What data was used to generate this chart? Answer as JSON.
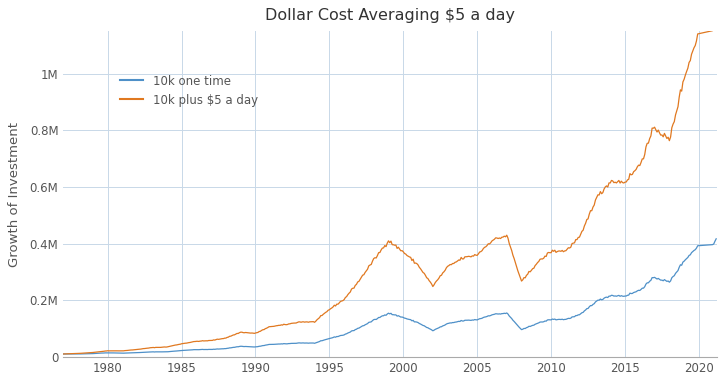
{
  "title": "Dollar Cost Averaging $5 a day",
  "ylabel": "Growth of Investment",
  "line1_label": "10k one time",
  "line2_label": "10k plus $5 a day",
  "line1_color": "#4e90c8",
  "line2_color": "#e07820",
  "background_color": "#ffffff",
  "grid_color": "#c8d8e8",
  "ytick_labels": [
    "0",
    "0.2M",
    "0.4M",
    "0.6M",
    "0.8M",
    "1M"
  ],
  "ytick_values": [
    0,
    200000,
    400000,
    600000,
    800000,
    1000000
  ],
  "xlim_start": 1977.0,
  "xlim_end": 2021.2,
  "ylim_top": 1150000,
  "start_year": 1977,
  "initial_investment": 10000,
  "daily_addition": 5,
  "xticks": [
    1980,
    1985,
    1990,
    1995,
    2000,
    2005,
    2010,
    2015,
    2020
  ]
}
